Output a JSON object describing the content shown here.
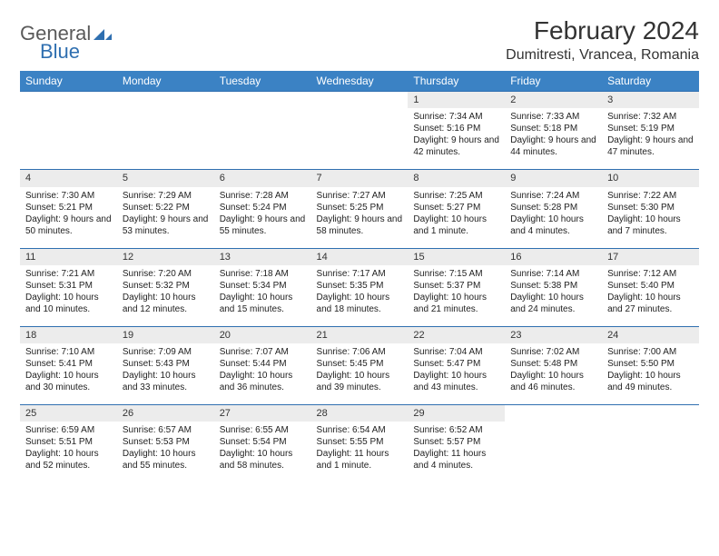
{
  "logo": {
    "general": "General",
    "blue": "Blue"
  },
  "title": "February 2024",
  "location": "Dumitresti, Vrancea, Romania",
  "colors": {
    "header_bg": "#3b82c4",
    "header_fg": "#ffffff",
    "daynum_bg": "#ececec",
    "border": "#2f6fb0",
    "logo_gray": "#5a5a5a",
    "logo_blue": "#2f6fb0"
  },
  "weekdays": [
    "Sunday",
    "Monday",
    "Tuesday",
    "Wednesday",
    "Thursday",
    "Friday",
    "Saturday"
  ],
  "weeks": [
    [
      null,
      null,
      null,
      null,
      {
        "n": "1",
        "sr": "7:34 AM",
        "ss": "5:16 PM",
        "dl": "9 hours and 42 minutes."
      },
      {
        "n": "2",
        "sr": "7:33 AM",
        "ss": "5:18 PM",
        "dl": "9 hours and 44 minutes."
      },
      {
        "n": "3",
        "sr": "7:32 AM",
        "ss": "5:19 PM",
        "dl": "9 hours and 47 minutes."
      }
    ],
    [
      {
        "n": "4",
        "sr": "7:30 AM",
        "ss": "5:21 PM",
        "dl": "9 hours and 50 minutes."
      },
      {
        "n": "5",
        "sr": "7:29 AM",
        "ss": "5:22 PM",
        "dl": "9 hours and 53 minutes."
      },
      {
        "n": "6",
        "sr": "7:28 AM",
        "ss": "5:24 PM",
        "dl": "9 hours and 55 minutes."
      },
      {
        "n": "7",
        "sr": "7:27 AM",
        "ss": "5:25 PM",
        "dl": "9 hours and 58 minutes."
      },
      {
        "n": "8",
        "sr": "7:25 AM",
        "ss": "5:27 PM",
        "dl": "10 hours and 1 minute."
      },
      {
        "n": "9",
        "sr": "7:24 AM",
        "ss": "5:28 PM",
        "dl": "10 hours and 4 minutes."
      },
      {
        "n": "10",
        "sr": "7:22 AM",
        "ss": "5:30 PM",
        "dl": "10 hours and 7 minutes."
      }
    ],
    [
      {
        "n": "11",
        "sr": "7:21 AM",
        "ss": "5:31 PM",
        "dl": "10 hours and 10 minutes."
      },
      {
        "n": "12",
        "sr": "7:20 AM",
        "ss": "5:32 PM",
        "dl": "10 hours and 12 minutes."
      },
      {
        "n": "13",
        "sr": "7:18 AM",
        "ss": "5:34 PM",
        "dl": "10 hours and 15 minutes."
      },
      {
        "n": "14",
        "sr": "7:17 AM",
        "ss": "5:35 PM",
        "dl": "10 hours and 18 minutes."
      },
      {
        "n": "15",
        "sr": "7:15 AM",
        "ss": "5:37 PM",
        "dl": "10 hours and 21 minutes."
      },
      {
        "n": "16",
        "sr": "7:14 AM",
        "ss": "5:38 PM",
        "dl": "10 hours and 24 minutes."
      },
      {
        "n": "17",
        "sr": "7:12 AM",
        "ss": "5:40 PM",
        "dl": "10 hours and 27 minutes."
      }
    ],
    [
      {
        "n": "18",
        "sr": "7:10 AM",
        "ss": "5:41 PM",
        "dl": "10 hours and 30 minutes."
      },
      {
        "n": "19",
        "sr": "7:09 AM",
        "ss": "5:43 PM",
        "dl": "10 hours and 33 minutes."
      },
      {
        "n": "20",
        "sr": "7:07 AM",
        "ss": "5:44 PM",
        "dl": "10 hours and 36 minutes."
      },
      {
        "n": "21",
        "sr": "7:06 AM",
        "ss": "5:45 PM",
        "dl": "10 hours and 39 minutes."
      },
      {
        "n": "22",
        "sr": "7:04 AM",
        "ss": "5:47 PM",
        "dl": "10 hours and 43 minutes."
      },
      {
        "n": "23",
        "sr": "7:02 AM",
        "ss": "5:48 PM",
        "dl": "10 hours and 46 minutes."
      },
      {
        "n": "24",
        "sr": "7:00 AM",
        "ss": "5:50 PM",
        "dl": "10 hours and 49 minutes."
      }
    ],
    [
      {
        "n": "25",
        "sr": "6:59 AM",
        "ss": "5:51 PM",
        "dl": "10 hours and 52 minutes."
      },
      {
        "n": "26",
        "sr": "6:57 AM",
        "ss": "5:53 PM",
        "dl": "10 hours and 55 minutes."
      },
      {
        "n": "27",
        "sr": "6:55 AM",
        "ss": "5:54 PM",
        "dl": "10 hours and 58 minutes."
      },
      {
        "n": "28",
        "sr": "6:54 AM",
        "ss": "5:55 PM",
        "dl": "11 hours and 1 minute."
      },
      {
        "n": "29",
        "sr": "6:52 AM",
        "ss": "5:57 PM",
        "dl": "11 hours and 4 minutes."
      },
      null,
      null
    ]
  ],
  "labels": {
    "sunrise": "Sunrise: ",
    "sunset": "Sunset: ",
    "daylight": "Daylight: "
  }
}
